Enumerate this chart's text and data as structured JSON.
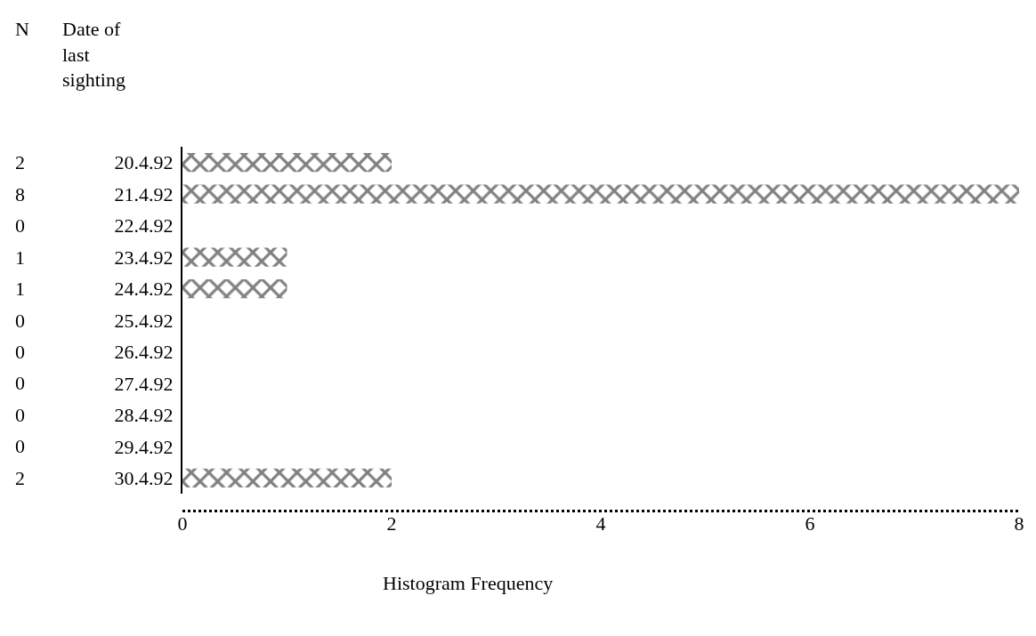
{
  "chart_data": {
    "type": "bar",
    "orientation": "horizontal",
    "categories": [
      "20.4.92",
      "21.4.92",
      "22.4.92",
      "23.4.92",
      "24.4.92",
      "25.4.92",
      "26.4.92",
      "27.4.92",
      "28.4.92",
      "29.4.92",
      "30.4.92"
    ],
    "values": [
      2,
      8,
      0,
      1,
      1,
      0,
      0,
      0,
      0,
      0,
      2
    ],
    "color": "#000000",
    "xlim": [
      0,
      8
    ],
    "xticks": [
      0,
      2,
      4,
      6,
      8
    ],
    "xlabel": "Histogram Frequency",
    "ylabel": "Date of last sighting",
    "annotations": [
      "N"
    ],
    "data_labels": true
  }
}
